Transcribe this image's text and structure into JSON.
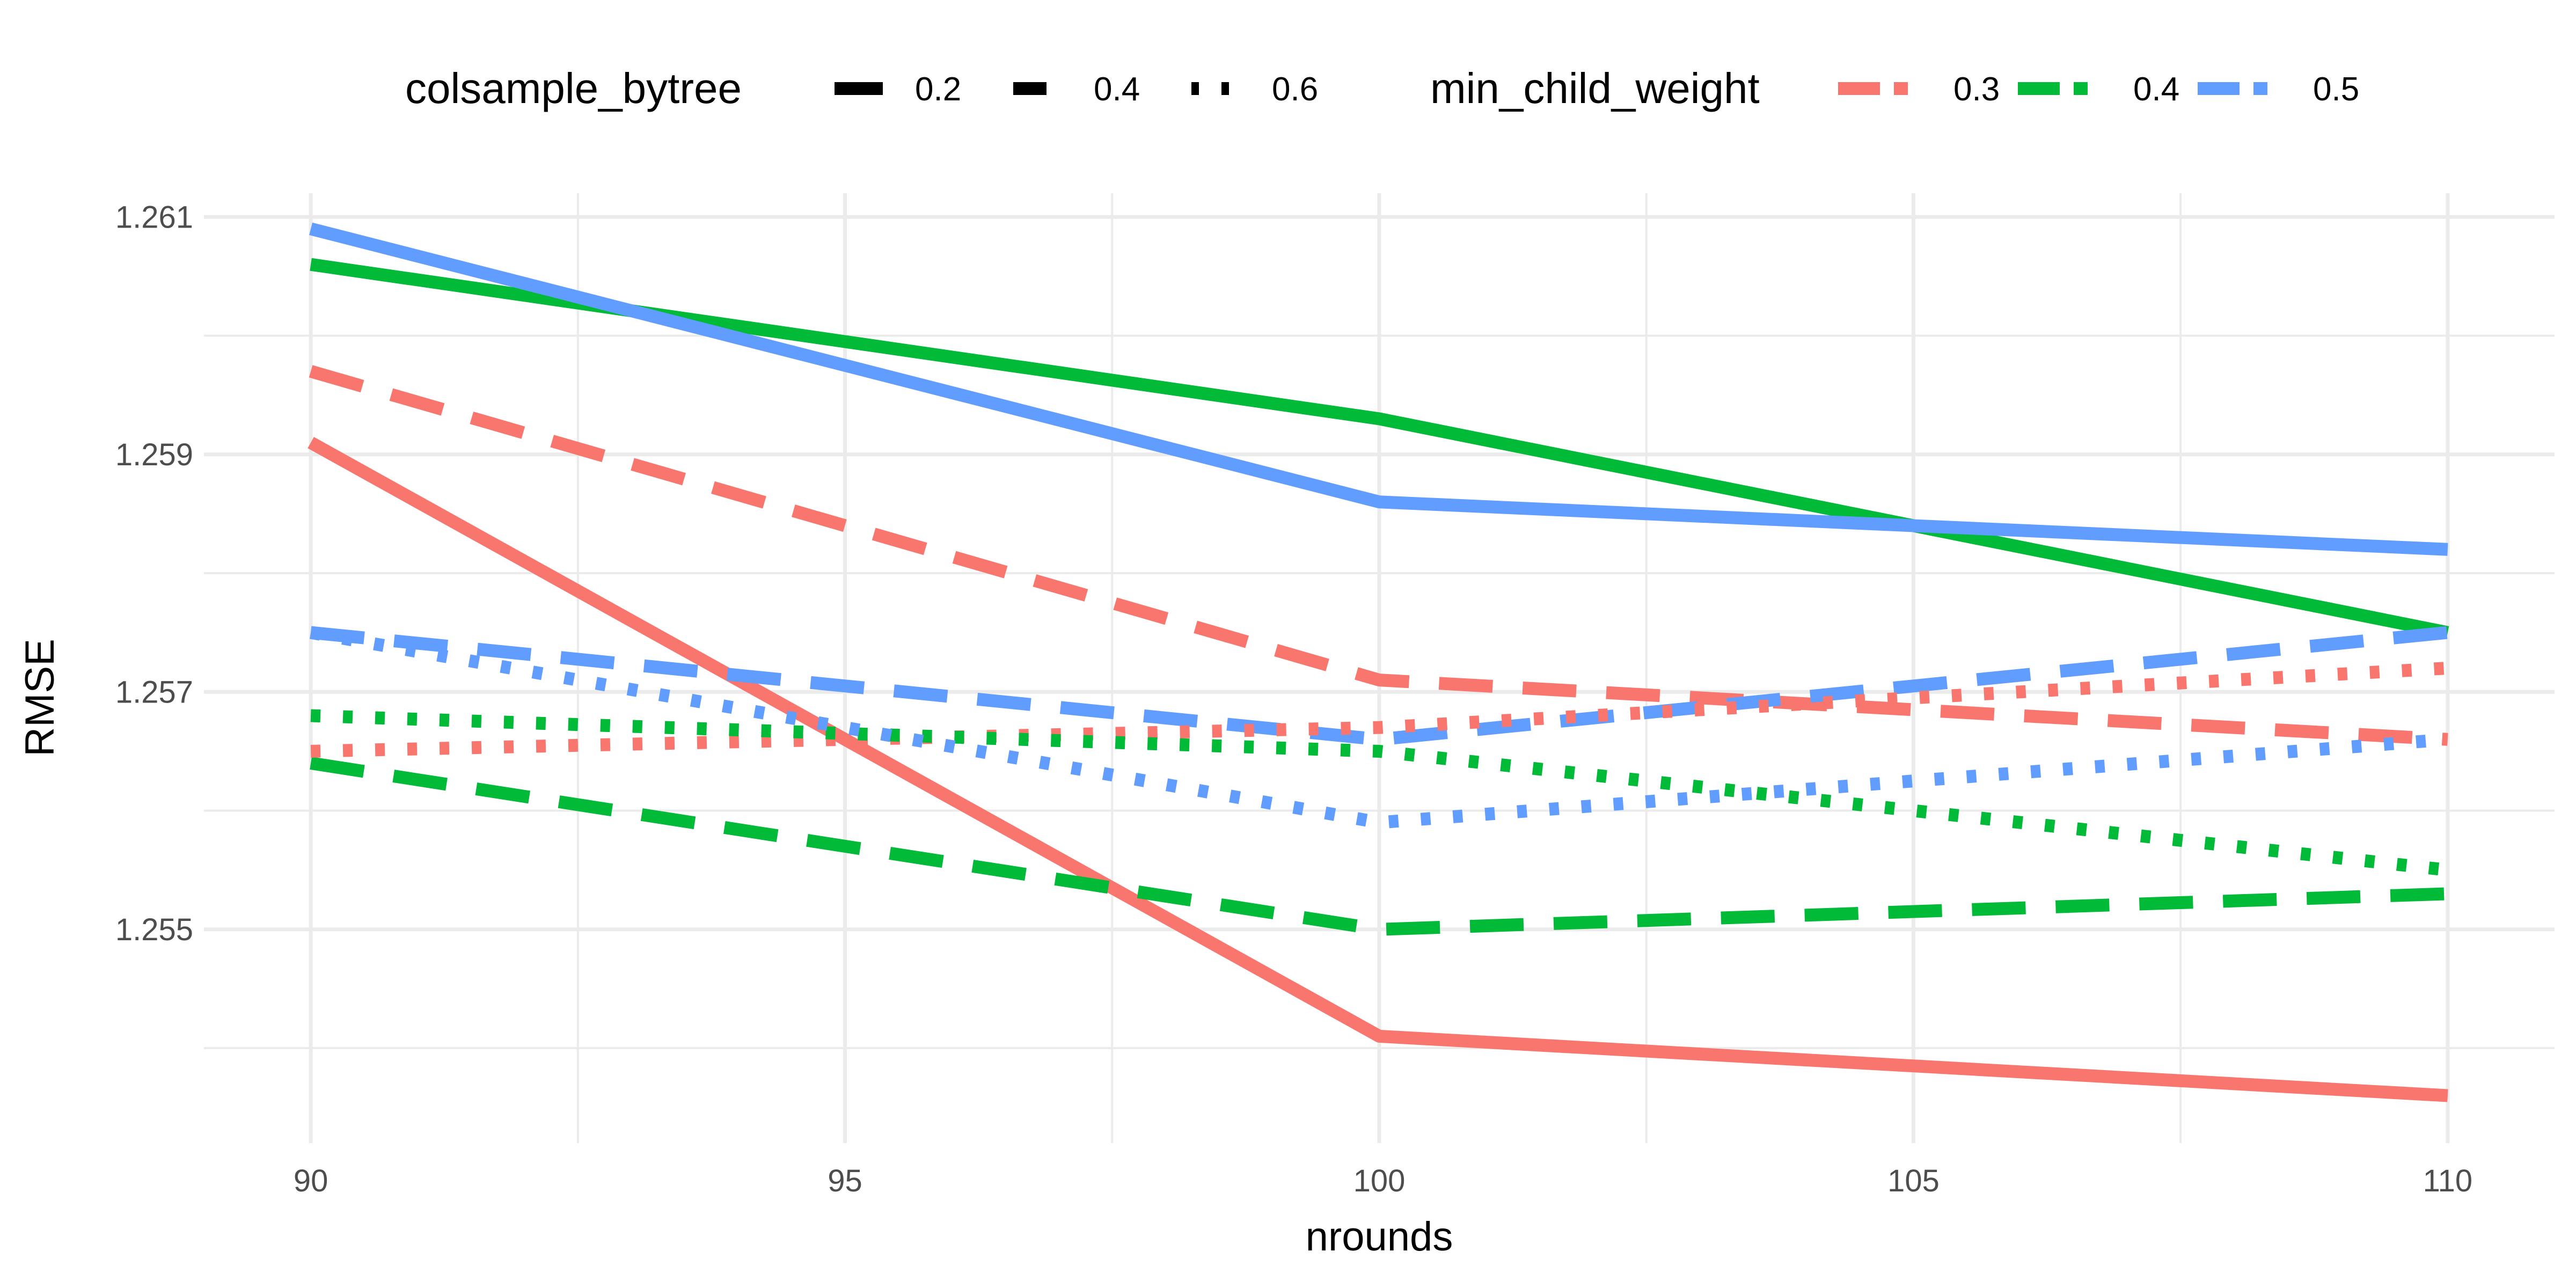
{
  "chart_data": {
    "type": "line",
    "xlabel": "nrounds",
    "ylabel": "RMSE",
    "x": [
      90,
      100,
      110
    ],
    "xlim": [
      89,
      111.0
    ],
    "ylim": [
      1.2532,
      1.2612
    ],
    "x_ticks": [
      90,
      95,
      100,
      105,
      110
    ],
    "y_ticks": [
      1.255,
      1.257,
      1.259,
      1.261
    ],
    "y_tick_labels": [
      "1.255",
      "1.257",
      "1.259",
      "1.261"
    ],
    "grid": true,
    "legend_position": "top",
    "legend": {
      "linetype_title": "colsample_bytree",
      "linetype_entries": [
        {
          "label": "0.2",
          "linetype": "solid"
        },
        {
          "label": "0.4",
          "linetype": "dashed"
        },
        {
          "label": "0.6",
          "linetype": "dotted"
        }
      ],
      "color_title": "min_child_weight",
      "color_entries": [
        {
          "label": "0.3",
          "color": "#F8766D"
        },
        {
          "label": "0.4",
          "color": "#00BA38"
        },
        {
          "label": "0.5",
          "color": "#619CFF"
        }
      ]
    },
    "series": [
      {
        "colsample_bytree": "0.2",
        "min_child_weight": "0.3",
        "values": [
          1.2591,
          1.2541,
          1.2536
        ]
      },
      {
        "colsample_bytree": "0.2",
        "min_child_weight": "0.4",
        "values": [
          1.2606,
          1.2593,
          1.2575
        ]
      },
      {
        "colsample_bytree": "0.2",
        "min_child_weight": "0.5",
        "values": [
          1.2609,
          1.2586,
          1.2582
        ]
      },
      {
        "colsample_bytree": "0.4",
        "min_child_weight": "0.3",
        "values": [
          1.2597,
          1.2571,
          1.2566
        ]
      },
      {
        "colsample_bytree": "0.4",
        "min_child_weight": "0.4",
        "values": [
          1.2564,
          1.255,
          1.2553
        ]
      },
      {
        "colsample_bytree": "0.4",
        "min_child_weight": "0.5",
        "values": [
          1.2575,
          1.2566,
          1.2575
        ]
      },
      {
        "colsample_bytree": "0.6",
        "min_child_weight": "0.3",
        "values": [
          1.2565,
          1.2567,
          1.2572
        ]
      },
      {
        "colsample_bytree": "0.6",
        "min_child_weight": "0.4",
        "values": [
          1.2568,
          1.2565,
          1.2555
        ]
      },
      {
        "colsample_bytree": "0.6",
        "min_child_weight": "0.5",
        "values": [
          1.2575,
          1.2559,
          1.2566
        ]
      }
    ]
  }
}
